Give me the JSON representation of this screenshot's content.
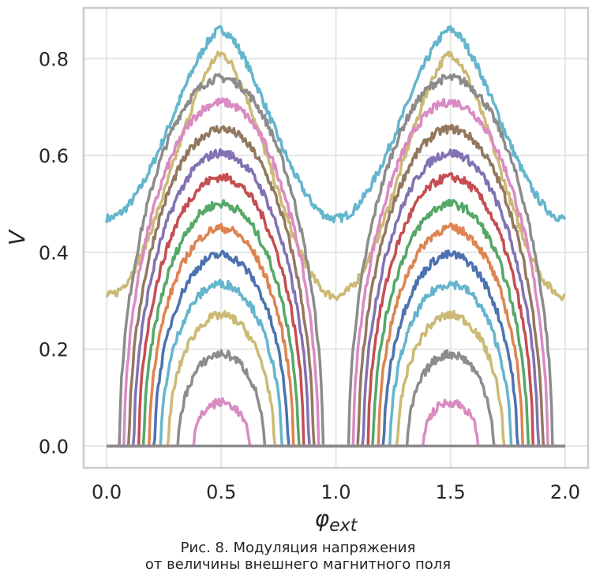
{
  "chart_data": {
    "type": "line",
    "xlabel_base": "φ",
    "xlabel_sub": "ext",
    "ylabel": "V",
    "xlim": [
      -0.1,
      2.1
    ],
    "ylim": [
      -0.045,
      0.905
    ],
    "x_ticks": [
      0.0,
      0.5,
      1.0,
      1.5,
      2.0
    ],
    "x_tick_labels": [
      "0.0",
      "0.5",
      "1.0",
      "1.5",
      "2.0"
    ],
    "y_ticks": [
      0.0,
      0.2,
      0.4,
      0.6,
      0.8
    ],
    "y_tick_labels": [
      "0.0",
      "0.2",
      "0.4",
      "0.6",
      "0.8"
    ],
    "grid": true,
    "legend": "none",
    "series": [
      {
        "peak": 0.86,
        "floor": 0.47,
        "color": "#64b5cd"
      },
      {
        "peak": 0.81,
        "floor": 0.31,
        "color": "#ccb974"
      },
      {
        "peak": 0.76,
        "floor": 0.0,
        "color": "#8c8c8c"
      },
      {
        "peak": 0.71,
        "floor": 0.0,
        "color": "#da8bc3"
      },
      {
        "peak": 0.655,
        "floor": 0.0,
        "color": "#937860"
      },
      {
        "peak": 0.605,
        "floor": 0.0,
        "color": "#8172b3"
      },
      {
        "peak": 0.555,
        "floor": 0.0,
        "color": "#c44e52"
      },
      {
        "peak": 0.5,
        "floor": 0.0,
        "color": "#55a868"
      },
      {
        "peak": 0.45,
        "floor": 0.0,
        "color": "#dd8452"
      },
      {
        "peak": 0.395,
        "floor": 0.0,
        "color": "#4c72b0"
      },
      {
        "peak": 0.335,
        "floor": 0.0,
        "color": "#64b5cd"
      },
      {
        "peak": 0.27,
        "floor": 0.0,
        "color": "#ccb974"
      },
      {
        "peak": 0.19,
        "floor": 0.0,
        "color": "#8c8c8c"
      },
      {
        "peak": 0.09,
        "floor": 0.0,
        "color": "#da8bc3"
      },
      {
        "peak": 0.0,
        "floor": 0.0,
        "color": "#8c8c8c"
      }
    ]
  },
  "caption": {
    "line1": "Рис. 8. Модуляция напряжения",
    "line2": "от величины внешнего магнитного поля"
  }
}
